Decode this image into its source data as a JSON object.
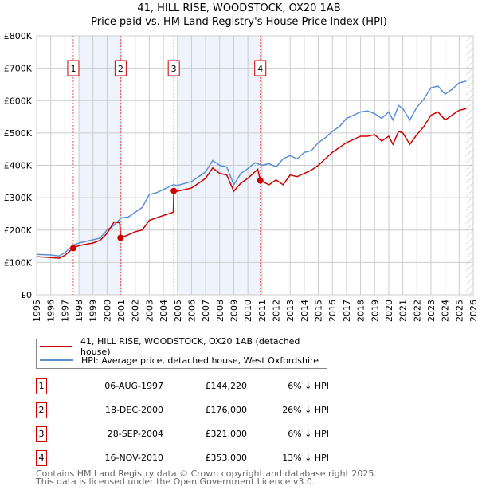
{
  "chart_data": {
    "type": "line",
    "title": "41, HILL RISE, WOODSTOCK, OX20 1AB",
    "subtitle": "Price paid vs. HM Land Registry's House Price Index (HPI)",
    "xlim": [
      1995,
      2026
    ],
    "ylim": [
      0,
      800000
    ],
    "y_ticks": [
      {
        "v": 0,
        "l": "£0"
      },
      {
        "v": 100000,
        "l": "£100K"
      },
      {
        "v": 200000,
        "l": "£200K"
      },
      {
        "v": 300000,
        "l": "£300K"
      },
      {
        "v": 400000,
        "l": "£400K"
      },
      {
        "v": 500000,
        "l": "£500K"
      },
      {
        "v": 600000,
        "l": "£600K"
      },
      {
        "v": 700000,
        "l": "£700K"
      },
      {
        "v": 800000,
        "l": "£800K"
      }
    ],
    "x_ticks": [
      "1995",
      "1996",
      "1997",
      "1998",
      "1999",
      "2000",
      "2001",
      "2002",
      "2003",
      "2004",
      "2005",
      "2006",
      "2007",
      "2008",
      "2009",
      "2010",
      "2011",
      "2012",
      "2013",
      "2014",
      "2015",
      "2016",
      "2017",
      "2018",
      "2019",
      "2020",
      "2021",
      "2022",
      "2023",
      "2024",
      "2025",
      "2026"
    ],
    "grid": true,
    "shaded_ranges": [
      [
        1998,
        2001
      ],
      [
        2005,
        2011
      ]
    ],
    "forecast_hatch_from": 2025.5,
    "series": [
      {
        "name": "41, HILL RISE, WOODSTOCK, OX20 1AB (detached house)",
        "color": "#cc0000",
        "points": [
          [
            1995,
            118
          ],
          [
            1996,
            115
          ],
          [
            1996.6,
            113
          ],
          [
            1997,
            122
          ],
          [
            1997.6,
            144
          ],
          [
            1998,
            152
          ],
          [
            1999,
            160
          ],
          [
            1999.5,
            168
          ],
          [
            2000,
            190
          ],
          [
            2000.5,
            225
          ],
          [
            2000.9,
            222
          ],
          [
            2000.96,
            176
          ],
          [
            2001.5,
            185
          ],
          [
            2002,
            195
          ],
          [
            2002.5,
            200
          ],
          [
            2003,
            230
          ],
          [
            2004,
            245
          ],
          [
            2004.7,
            255
          ],
          [
            2004.74,
            321
          ],
          [
            2005,
            320
          ],
          [
            2006,
            330
          ],
          [
            2006.5,
            345
          ],
          [
            2007,
            360
          ],
          [
            2007.5,
            392
          ],
          [
            2008,
            375
          ],
          [
            2008.5,
            370
          ],
          [
            2009,
            320
          ],
          [
            2009.5,
            345
          ],
          [
            2010,
            360
          ],
          [
            2010.7,
            388
          ],
          [
            2010.88,
            353
          ],
          [
            2011.5,
            340
          ],
          [
            2012,
            355
          ],
          [
            2012.5,
            340
          ],
          [
            2013,
            370
          ],
          [
            2013.5,
            365
          ],
          [
            2014,
            375
          ],
          [
            2014.5,
            385
          ],
          [
            2015,
            400
          ],
          [
            2015.5,
            420
          ],
          [
            2016,
            440
          ],
          [
            2016.5,
            455
          ],
          [
            2017,
            470
          ],
          [
            2017.5,
            480
          ],
          [
            2018,
            490
          ],
          [
            2018.5,
            490
          ],
          [
            2019,
            495
          ],
          [
            2019.5,
            475
          ],
          [
            2020,
            490
          ],
          [
            2020.3,
            465
          ],
          [
            2020.7,
            505
          ],
          [
            2021,
            500
          ],
          [
            2021.5,
            465
          ],
          [
            2022,
            495
          ],
          [
            2022.5,
            520
          ],
          [
            2023,
            555
          ],
          [
            2023.5,
            565
          ],
          [
            2024,
            540
          ],
          [
            2024.5,
            555
          ],
          [
            2025,
            570
          ],
          [
            2025.5,
            575
          ]
        ]
      },
      {
        "name": "HPI: Average price, detached house, West Oxfordshire",
        "color": "#5b8fd4",
        "points": [
          [
            1995,
            125
          ],
          [
            1996,
            123
          ],
          [
            1996.6,
            120
          ],
          [
            1997,
            130
          ],
          [
            1997.6,
            153
          ],
          [
            1998,
            160
          ],
          [
            1999,
            170
          ],
          [
            1999.5,
            175
          ],
          [
            2000,
            200
          ],
          [
            2000.5,
            215
          ],
          [
            2001,
            238
          ],
          [
            2001.5,
            240
          ],
          [
            2002,
            255
          ],
          [
            2002.5,
            270
          ],
          [
            2003,
            310
          ],
          [
            2003.5,
            315
          ],
          [
            2004,
            325
          ],
          [
            2004.7,
            340
          ],
          [
            2005,
            338
          ],
          [
            2006,
            350
          ],
          [
            2006.5,
            365
          ],
          [
            2007,
            380
          ],
          [
            2007.5,
            415
          ],
          [
            2008,
            400
          ],
          [
            2008.5,
            395
          ],
          [
            2009,
            340
          ],
          [
            2009.5,
            375
          ],
          [
            2010,
            390
          ],
          [
            2010.5,
            408
          ],
          [
            2011,
            400
          ],
          [
            2011.5,
            405
          ],
          [
            2012,
            395
          ],
          [
            2012.5,
            420
          ],
          [
            2013,
            430
          ],
          [
            2013.5,
            420
          ],
          [
            2014,
            440
          ],
          [
            2014.5,
            445
          ],
          [
            2015,
            470
          ],
          [
            2015.5,
            485
          ],
          [
            2016,
            505
          ],
          [
            2016.5,
            520
          ],
          [
            2017,
            545
          ],
          [
            2017.5,
            555
          ],
          [
            2018,
            565
          ],
          [
            2018.5,
            568
          ],
          [
            2019,
            560
          ],
          [
            2019.5,
            545
          ],
          [
            2020,
            565
          ],
          [
            2020.3,
            540
          ],
          [
            2020.7,
            585
          ],
          [
            2021,
            575
          ],
          [
            2021.5,
            540
          ],
          [
            2022,
            580
          ],
          [
            2022.5,
            605
          ],
          [
            2023,
            640
          ],
          [
            2023.5,
            645
          ],
          [
            2024,
            620
          ],
          [
            2024.5,
            635
          ],
          [
            2025,
            655
          ],
          [
            2025.5,
            660
          ]
        ]
      }
    ],
    "sales": [
      {
        "n": "1",
        "year": 1997.6,
        "value": 144220,
        "date": "06-AUG-1997",
        "price": "£144,220",
        "diff": "6% ↓ HPI"
      },
      {
        "n": "2",
        "year": 2000.96,
        "value": 176000,
        "date": "18-DEC-2000",
        "price": "£176,000",
        "diff": "26% ↓ HPI"
      },
      {
        "n": "3",
        "year": 2004.74,
        "value": 321000,
        "date": "28-SEP-2004",
        "price": "£321,000",
        "diff": "6% ↓ HPI"
      },
      {
        "n": "4",
        "year": 2010.88,
        "value": 353000,
        "date": "16-NOV-2010",
        "price": "£353,000",
        "diff": "13% ↓ HPI"
      }
    ]
  },
  "footer": {
    "line1": "Contains HM Land Registry data © Crown copyright and database right 2025.",
    "line2": "This data is licensed under the Open Government Licence v3.0."
  }
}
